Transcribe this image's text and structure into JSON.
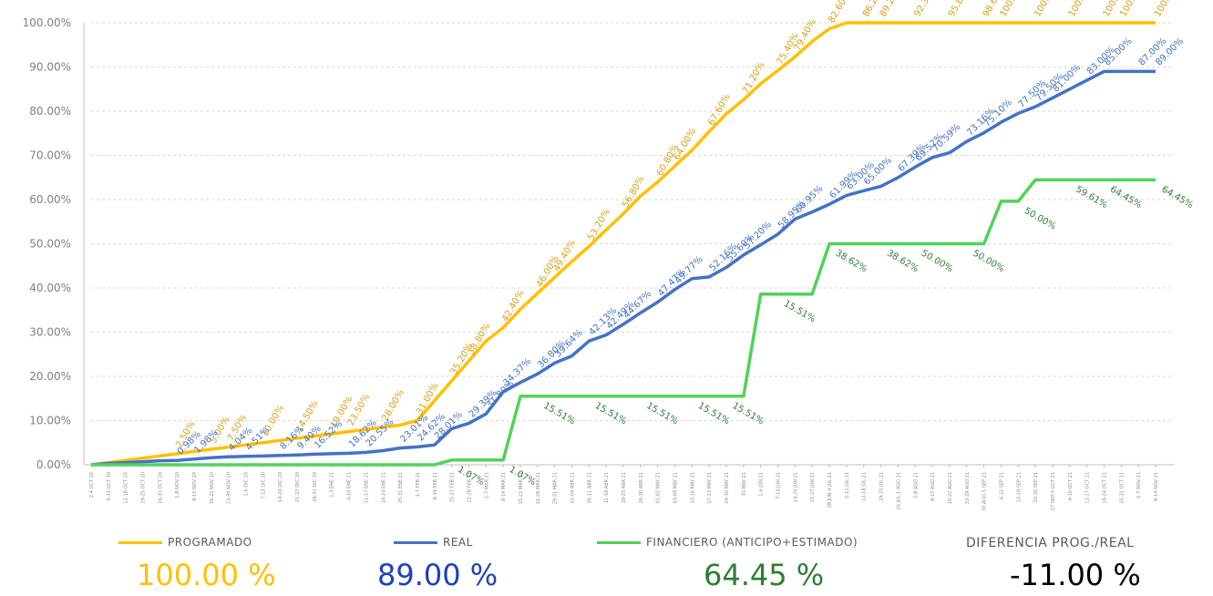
{
  "chart_data": {
    "type": "line",
    "ylim": [
      0,
      100
    ],
    "y_ticks": [
      "0.00%",
      "10.00%",
      "20.00%",
      "30.00%",
      "40.00%",
      "50.00%",
      "60.00%",
      "70.00%",
      "80.00%",
      "90.00%",
      "100.00%"
    ],
    "grid": true,
    "x": [
      "2-4 OCT 20",
      "5-11 OCT 20",
      "12-18 OCT 20",
      "19-25 OCT 20",
      "26-31 OCT 20",
      "1-8 NOV 20",
      "9-15 NOV 20",
      "16-22 NOV 20",
      "23-30 NOV 20",
      "1-6 DIC 20",
      "7-13 DIC 20",
      "14-20 DIC 20",
      "21-27 DIC 20",
      "28-31 DIC 20",
      "1-3 ENE 21",
      "4-10 ENE 21",
      "11-17 ENE 21",
      "18-24 ENE 21",
      "25-31 ENE 21",
      "1-7 FEB 21",
      "8-14 FEB 21",
      "15-21 FEB 21",
      "22-28 FEB 21",
      "1-7 MAR 21",
      "8-14 MAR 21",
      "15-21 MAR 21",
      "22-28 MAR 21",
      "29-31 MAR 21",
      "01-04 ABR 21",
      "05-11 ABR 21",
      "12-18 ABR 21",
      "19-25 ABR 21",
      "26-30 ABR 21",
      "01-02 MAY 21",
      "03-09 MAY 21",
      "10-16 MAY 21",
      "17-23 MAY 21",
      "24-30 MAY 21",
      "31 MAY 21",
      "1-6 JUN 21",
      "7-13 JUN 21",
      "14-20 JUN 21",
      "21-27 JUN 21",
      "28 JUN-4 JUL 21",
      "5-11 JUL 21",
      "12-18 JUL 21",
      "19-25 JUL 21",
      "26 JUL-1 AGO 21",
      "2-8 AGO 21",
      "9-15 AGO 21",
      "16-22 AGO 21",
      "23-29 AGO 21",
      "30 AGO-5 SEP 21",
      "6-12 SEP 21",
      "13-19 SEP 21",
      "20-26 SEP 21",
      "27 SEP-3 OCT 21",
      "4-10 OCT 21",
      "11-17 OCT 21",
      "18-24 OCT 21",
      "25-31 OCT 21",
      "1-7 NOV 21",
      "8-14 NOV 21"
    ],
    "series": [
      {
        "name": "PROGRAMADO",
        "color": "#FFC000",
        "values": [
          0,
          0.5,
          1,
          1.5,
          2,
          2.5,
          3,
          3.5,
          4,
          4.5,
          5,
          5.5,
          6,
          6.5,
          7,
          7.5,
          8,
          8.5,
          9,
          10,
          14.5,
          19,
          23.5,
          28,
          31,
          35.2,
          38.8,
          42.4,
          46,
          49.4,
          53.2,
          56.8,
          60.8,
          64,
          67.6,
          71.2,
          75.4,
          79.4,
          82.6,
          86.2,
          89.2,
          92.33,
          95.8,
          98.63,
          100,
          100,
          100,
          100,
          100,
          100,
          100,
          100,
          100,
          100,
          100,
          100,
          100,
          100,
          100,
          100,
          100,
          100,
          100
        ]
      },
      {
        "name": "REAL",
        "color": "#4472C4",
        "values": [
          0,
          0.3,
          0.5,
          0.7,
          0.9,
          0.98,
          1.3,
          1.6,
          1.8,
          1.9,
          1.98,
          2.1,
          2.2,
          2.4,
          2.5,
          2.6,
          2.8,
          3.2,
          3.8,
          4.04,
          4.5,
          8.16,
          9.4,
          11.5,
          16.52,
          18.62,
          20.55,
          23.01,
          24.62,
          28.01,
          29.39,
          31.8,
          34.37,
          36.8,
          39.64,
          42.13,
          42.49,
          44.67,
          47.47,
          49.77,
          52.16,
          55.6,
          57.2,
          58.95,
          60.95,
          61.99,
          63,
          65,
          67.39,
          69.52,
          70.59,
          73.16,
          75.1,
          77.5,
          79.5,
          81,
          83,
          85,
          87,
          89,
          89,
          89,
          89
        ]
      },
      {
        "name": "FINANCIERO (ANTICIPO+ESTIMADO)",
        "color": "#4FD35B",
        "values": [
          0,
          0,
          0,
          0,
          0,
          0,
          0,
          0,
          0,
          0,
          0,
          0,
          0,
          0,
          0,
          0,
          0,
          0,
          0,
          0,
          0,
          1.07,
          1.07,
          1.07,
          1.07,
          15.51,
          15.51,
          15.51,
          15.51,
          15.51,
          15.51,
          15.51,
          15.51,
          15.51,
          15.51,
          15.51,
          15.51,
          15.51,
          15.51,
          38.62,
          38.62,
          38.62,
          38.62,
          50,
          50,
          50,
          50,
          50,
          50,
          50,
          50,
          50,
          50,
          59.61,
          59.61,
          64.45,
          64.45,
          64.45,
          64.45,
          64.45,
          64.45,
          64.45,
          64.45
        ]
      }
    ],
    "data_labels": {
      "PROGRAMADO": [
        "2.50%",
        "5.00%",
        "7.50%",
        "10.00%",
        "14.50%",
        "19.00%",
        "23.50%",
        "28.00%",
        "31.00%",
        "35.20%",
        "38.80%",
        "42.40%",
        "46.00%",
        "49.40%",
        "53.20%",
        "56.80%",
        "60.80%",
        "64.00%",
        "67.60%",
        "71.20%",
        "75.40%",
        "79.40%",
        "82.60%",
        "86.20%",
        "89.20%",
        "92.33%",
        "95.80%",
        "98.63%",
        "100.00%",
        "100.00%",
        "100.00%",
        "100.00%",
        "100.00%",
        "100.00%"
      ],
      "REAL": [
        "0.98%",
        "1.98%",
        "4.04%",
        "4.51%",
        "8.16%",
        "9.40%",
        "16.52%",
        "18.62%",
        "20.55%",
        "23.01%",
        "24.62%",
        "28.01%",
        "29.39%",
        "31.80%",
        "34.37%",
        "36.80%",
        "39.64%",
        "42.13%",
        "42.49%",
        "44.67%",
        "47.47%",
        "49.77%",
        "52.16%",
        "55.60%",
        "57.20%",
        "58.95%",
        "60.95%",
        "61.99%",
        "63.00%",
        "65.00%",
        "67.39%",
        "69.52%",
        "70.59%",
        "73.16%",
        "75.10%",
        "77.50%",
        "79.50%",
        "81.00%",
        "83.00%",
        "85.00%",
        "87.00%",
        "89.00%"
      ],
      "FINANCIERO": [
        "1.07%",
        "1.07%",
        "15.51%",
        "15.51%",
        "15.51%",
        "15.51%",
        "15.51%",
        "15.51%",
        "38.62%",
        "38.62%",
        "50.00%",
        "50.00%",
        "50.00%",
        "59.61%",
        "64.45%",
        "64.45%"
      ]
    }
  },
  "legend": [
    {
      "label": "PROGRAMADO",
      "color": "#FFC000"
    },
    {
      "label": "REAL",
      "color": "#4472C4"
    },
    {
      "label": "FINANCIERO (ANTICIPO+ESTIMADO)",
      "color": "#4FD35B"
    }
  ],
  "summary": {
    "programado": {
      "value": "100.00 %",
      "color": "#FFC000"
    },
    "real": {
      "value": "89.00 %",
      "color": "#1F3FBF"
    },
    "financiero": {
      "value": "64.45 %",
      "color": "#2E7D32"
    },
    "diferencia": {
      "label": "DIFERENCIA PROG./REAL",
      "value": "-11.00 %",
      "color": "#000000"
    }
  }
}
